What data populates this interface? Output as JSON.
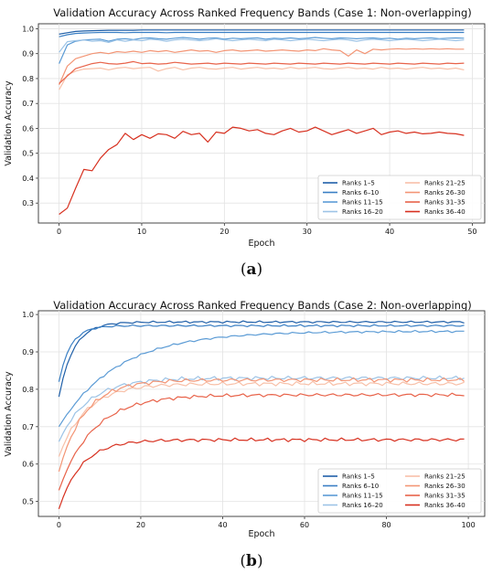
{
  "chart_data": [
    {
      "type": "line",
      "panel_label": "a",
      "title": "Validation Accuracy Across Ranked Frequency Bands (Case 1: Non-overlapping)",
      "xlabel": "Epoch",
      "ylabel": "Validation Accuracy",
      "xlim": [
        -2.5,
        51.5
      ],
      "ylim": [
        0.22,
        1.02
      ],
      "xticks": [
        0,
        10,
        20,
        30,
        40,
        50
      ],
      "yticks": [
        0.3,
        0.4,
        0.5,
        0.6,
        0.7,
        0.8,
        0.9,
        1.0
      ],
      "grid": true,
      "legend_position": "bottom-right",
      "legend_columns": 2,
      "series": [
        {
          "name": "Ranks 1–5",
          "color": "#1f5fa8",
          "values": [
            0.978,
            0.984,
            0.989,
            0.991,
            0.992,
            0.993,
            0.994,
            0.994,
            0.994,
            0.994,
            0.995,
            0.995,
            0.995,
            0.995,
            0.995,
            0.995,
            0.995,
            0.995,
            0.995,
            0.995,
            0.995,
            0.995,
            0.995,
            0.995,
            0.995,
            0.995,
            0.995,
            0.995,
            0.995,
            0.995,
            0.995,
            0.995,
            0.995,
            0.995,
            0.995,
            0.995,
            0.995,
            0.995,
            0.995,
            0.995,
            0.995,
            0.995,
            0.995,
            0.995,
            0.995,
            0.995,
            0.995,
            0.995,
            0.995,
            0.995
          ]
        },
        {
          "name": "Ranks 6–10",
          "color": "#3a7fc4",
          "values": [
            0.968,
            0.976,
            0.981,
            0.983,
            0.984,
            0.985,
            0.985,
            0.985,
            0.984,
            0.985,
            0.985,
            0.985,
            0.985,
            0.984,
            0.985,
            0.985,
            0.985,
            0.985,
            0.985,
            0.985,
            0.985,
            0.985,
            0.985,
            0.985,
            0.985,
            0.985,
            0.985,
            0.985,
            0.985,
            0.985,
            0.985,
            0.985,
            0.985,
            0.985,
            0.985,
            0.985,
            0.985,
            0.985,
            0.985,
            0.985,
            0.985,
            0.985,
            0.985,
            0.985,
            0.985,
            0.985,
            0.985,
            0.985,
            0.985,
            0.985
          ]
        },
        {
          "name": "Ranks 11–15",
          "color": "#5b9bd5",
          "values": [
            0.86,
            0.935,
            0.95,
            0.955,
            0.957,
            0.958,
            0.95,
            0.958,
            0.96,
            0.956,
            0.962,
            0.963,
            0.96,
            0.958,
            0.962,
            0.965,
            0.962,
            0.958,
            0.962,
            0.963,
            0.958,
            0.962,
            0.96,
            0.962,
            0.963,
            0.958,
            0.962,
            0.96,
            0.963,
            0.96,
            0.962,
            0.965,
            0.962,
            0.96,
            0.963,
            0.962,
            0.96,
            0.962,
            0.963,
            0.96,
            0.962,
            0.958,
            0.962,
            0.96,
            0.962,
            0.963,
            0.96,
            0.962,
            0.963,
            0.962
          ]
        },
        {
          "name": "Ranks 16–20",
          "color": "#9cc3e6",
          "values": [
            0.905,
            0.948,
            0.952,
            0.955,
            0.95,
            0.952,
            0.945,
            0.955,
            0.95,
            0.955,
            0.952,
            0.958,
            0.955,
            0.95,
            0.955,
            0.958,
            0.955,
            0.952,
            0.955,
            0.96,
            0.955,
            0.952,
            0.955,
            0.958,
            0.955,
            0.952,
            0.958,
            0.955,
            0.952,
            0.955,
            0.958,
            0.955,
            0.952,
            0.955,
            0.958,
            0.955,
            0.95,
            0.955,
            0.958,
            0.955,
            0.952,
            0.955,
            0.958,
            0.955,
            0.952,
            0.955,
            0.958,
            0.955,
            0.952,
            0.955
          ]
        },
        {
          "name": "Ranks 21–25",
          "color": "#f8c0a8",
          "values": [
            0.755,
            0.815,
            0.83,
            0.838,
            0.84,
            0.842,
            0.835,
            0.842,
            0.845,
            0.84,
            0.843,
            0.845,
            0.83,
            0.84,
            0.845,
            0.835,
            0.842,
            0.845,
            0.84,
            0.838,
            0.842,
            0.845,
            0.838,
            0.842,
            0.845,
            0.84,
            0.842,
            0.838,
            0.845,
            0.84,
            0.842,
            0.845,
            0.84,
            0.838,
            0.842,
            0.845,
            0.84,
            0.842,
            0.838,
            0.845,
            0.84,
            0.842,
            0.838,
            0.842,
            0.845,
            0.84,
            0.842,
            0.838,
            0.842,
            0.835
          ]
        },
        {
          "name": "Ranks 26–30",
          "color": "#f39575",
          "values": [
            0.775,
            0.85,
            0.88,
            0.89,
            0.9,
            0.905,
            0.9,
            0.908,
            0.905,
            0.91,
            0.905,
            0.912,
            0.908,
            0.912,
            0.905,
            0.91,
            0.915,
            0.91,
            0.912,
            0.905,
            0.912,
            0.915,
            0.91,
            0.912,
            0.915,
            0.91,
            0.912,
            0.915,
            0.912,
            0.91,
            0.915,
            0.912,
            0.92,
            0.915,
            0.912,
            0.89,
            0.915,
            0.9,
            0.918,
            0.915,
            0.918,
            0.92,
            0.918,
            0.92,
            0.918,
            0.92,
            0.918,
            0.92,
            0.918,
            0.918
          ]
        },
        {
          "name": "Ranks 31–35",
          "color": "#e8634a",
          "values": [
            0.78,
            0.81,
            0.84,
            0.85,
            0.86,
            0.865,
            0.86,
            0.858,
            0.862,
            0.868,
            0.86,
            0.862,
            0.858,
            0.86,
            0.865,
            0.862,
            0.858,
            0.86,
            0.862,
            0.858,
            0.862,
            0.86,
            0.858,
            0.862,
            0.86,
            0.858,
            0.862,
            0.86,
            0.858,
            0.862,
            0.86,
            0.858,
            0.862,
            0.86,
            0.858,
            0.862,
            0.86,
            0.858,
            0.862,
            0.86,
            0.858,
            0.862,
            0.86,
            0.858,
            0.862,
            0.86,
            0.858,
            0.862,
            0.86,
            0.862
          ]
        },
        {
          "name": "Ranks 36–40",
          "color": "#d7301f",
          "values": [
            0.255,
            0.28,
            0.36,
            0.435,
            0.43,
            0.48,
            0.515,
            0.535,
            0.58,
            0.555,
            0.575,
            0.56,
            0.578,
            0.575,
            0.56,
            0.588,
            0.575,
            0.58,
            0.545,
            0.585,
            0.58,
            0.605,
            0.6,
            0.59,
            0.595,
            0.58,
            0.575,
            0.59,
            0.6,
            0.585,
            0.59,
            0.605,
            0.59,
            0.575,
            0.585,
            0.595,
            0.58,
            0.59,
            0.6,
            0.575,
            0.585,
            0.59,
            0.58,
            0.585,
            0.578,
            0.58,
            0.585,
            0.58,
            0.578,
            0.572
          ]
        }
      ]
    },
    {
      "type": "line",
      "panel_label": "b",
      "title": "Validation Accuracy Across Ranked Frequency Bands (Case 2: Non-overlapping)",
      "xlabel": "Epoch",
      "ylabel": "Validation Accuracy",
      "xlim": [
        -5,
        104
      ],
      "ylim": [
        0.46,
        1.01
      ],
      "xticks": [
        0,
        20,
        40,
        60,
        80,
        100
      ],
      "yticks": [
        0.5,
        0.6,
        0.7,
        0.8,
        0.9,
        1.0
      ],
      "grid": true,
      "legend_position": "bottom-right",
      "legend_columns": 2,
      "curves": [
        {
          "name": "Ranks 1–5",
          "color": "#1f5fa8",
          "start": 0.78,
          "end": 0.98,
          "rate": 0.28,
          "noise": 0.003
        },
        {
          "name": "Ranks 6–10",
          "color": "#3a7fc4",
          "start": 0.82,
          "end": 0.97,
          "rate": 0.35,
          "noise": 0.003
        },
        {
          "name": "Ranks 11–15",
          "color": "#5b9bd5",
          "start": 0.7,
          "end": 0.955,
          "rate": 0.07,
          "noise": 0.003
        },
        {
          "name": "Ranks 16–20",
          "color": "#9cc3e6",
          "start": 0.66,
          "end": 0.83,
          "rate": 0.14,
          "noise": 0.006
        },
        {
          "name": "Ranks 21–25",
          "color": "#f8c0a8",
          "start": 0.62,
          "end": 0.815,
          "rate": 0.15,
          "noise": 0.006
        },
        {
          "name": "Ranks 26–30",
          "color": "#f39575",
          "start": 0.58,
          "end": 0.825,
          "rate": 0.16,
          "noise": 0.006
        },
        {
          "name": "Ranks 31–35",
          "color": "#e8634a",
          "start": 0.53,
          "end": 0.785,
          "rate": 0.12,
          "noise": 0.005
        },
        {
          "name": "Ranks 36–40",
          "color": "#d7301f",
          "start": 0.48,
          "end": 0.665,
          "rate": 0.18,
          "noise": 0.005
        }
      ]
    }
  ]
}
